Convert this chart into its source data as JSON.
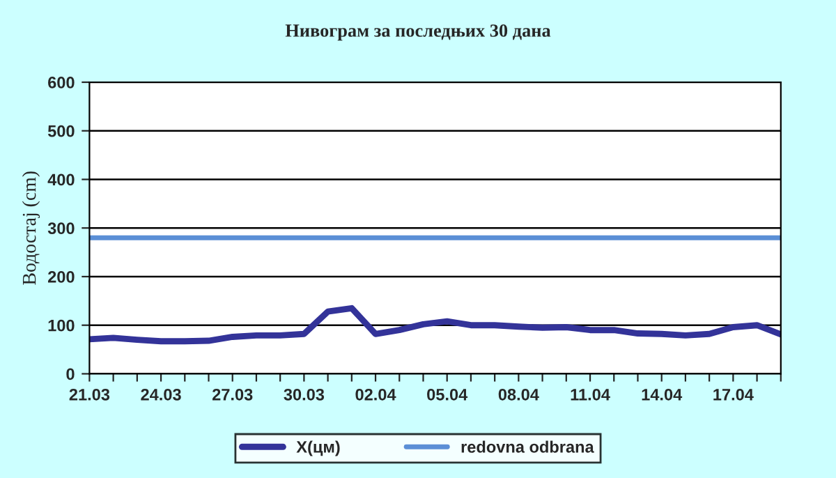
{
  "chart_data": {
    "type": "line",
    "title": "Нивограм за последњих 30 дана",
    "ylabel": "Водостај (cm)",
    "categories": [
      "21.03",
      null,
      null,
      "24.03",
      null,
      null,
      "27.03",
      null,
      null,
      "30.03",
      null,
      null,
      "02.04",
      null,
      null,
      "05.04",
      null,
      null,
      "08.04",
      null,
      null,
      "11.04",
      null,
      null,
      "14.04",
      null,
      null,
      "17.04",
      null,
      null
    ],
    "series": [
      {
        "name": "X(цм)",
        "color": "#333399",
        "values": [
          71,
          74,
          70,
          67,
          67,
          68,
          76,
          79,
          79,
          82,
          128,
          135,
          82,
          90,
          102,
          108,
          100,
          100,
          97,
          95,
          96,
          90,
          90,
          83,
          82,
          79,
          82,
          96,
          100,
          81
        ]
      }
    ],
    "ref_lines": [
      {
        "axis": "y",
        "value": 280,
        "label": "redovna odbrana",
        "color": "#5b8fd6"
      }
    ],
    "ylim": [
      0,
      600
    ],
    "yticks": [
      0,
      100,
      200,
      300,
      400,
      500,
      600
    ],
    "grid": "y",
    "legend": "bottom",
    "marker": "none",
    "line_style": "solid"
  }
}
